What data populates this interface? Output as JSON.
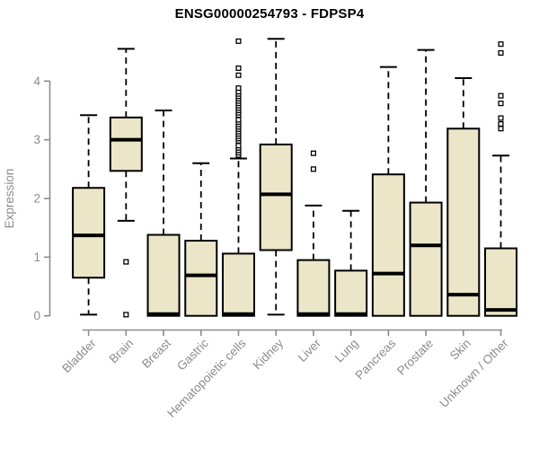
{
  "chart_data": {
    "type": "boxplot",
    "title": "ENSG00000254793 - FDPSP4",
    "xlabel": "",
    "ylabel": "Expression",
    "yticks": [
      0,
      1,
      2,
      3,
      4
    ],
    "ylim": [
      0,
      4.85
    ],
    "grid": false,
    "legend": "none",
    "categories": [
      "Bladder",
      "Brain",
      "Breast",
      "Gastric",
      "Hematopoietic cells",
      "Kidney",
      "Liver",
      "Lung",
      "Pancreas",
      "Prostate",
      "Skin",
      "Unknown / Other"
    ],
    "boxes": [
      {
        "category": "Bladder",
        "min": 0.02,
        "q1": 0.65,
        "median": 1.37,
        "q3": 2.18,
        "max": 3.42,
        "outliers": []
      },
      {
        "category": "Brain",
        "min": 1.62,
        "q1": 2.47,
        "median": 3.0,
        "q3": 3.38,
        "max": 4.55,
        "outliers": [
          0.92,
          0.02
        ]
      },
      {
        "category": "Breast",
        "min": 0.0,
        "q1": 0.0,
        "median": 0.03,
        "q3": 1.38,
        "max": 3.5,
        "outliers": []
      },
      {
        "category": "Gastric",
        "min": 0.0,
        "q1": 0.0,
        "median": 0.69,
        "q3": 1.28,
        "max": 2.6,
        "outliers": []
      },
      {
        "category": "Hematopoietic cells",
        "min": 0.0,
        "q1": 0.0,
        "median": 0.03,
        "q3": 1.06,
        "max": 2.68,
        "outliers": [
          2.74,
          2.78,
          2.82,
          2.86,
          2.9,
          2.98,
          3.02,
          3.06,
          3.1,
          3.14,
          3.18,
          3.22,
          3.26,
          3.3,
          3.34,
          3.42,
          3.46,
          3.5,
          3.54,
          3.58,
          3.62,
          3.66,
          3.7,
          3.74,
          3.78,
          3.82,
          3.88,
          4.1,
          4.22,
          4.68
        ]
      },
      {
        "category": "Kidney",
        "min": 0.02,
        "q1": 1.12,
        "median": 2.07,
        "q3": 2.92,
        "max": 4.72,
        "outliers": []
      },
      {
        "category": "Liver",
        "min": 0.0,
        "q1": 0.0,
        "median": 0.03,
        "q3": 0.95,
        "max": 1.88,
        "outliers": [
          2.5,
          2.77
        ]
      },
      {
        "category": "Lung",
        "min": 0.0,
        "q1": 0.0,
        "median": 0.03,
        "q3": 0.77,
        "max": 1.79,
        "outliers": []
      },
      {
        "category": "Pancreas",
        "min": 0.0,
        "q1": 0.0,
        "median": 0.72,
        "q3": 2.41,
        "max": 4.24,
        "outliers": []
      },
      {
        "category": "Prostate",
        "min": 0.0,
        "q1": 0.0,
        "median": 1.2,
        "q3": 1.93,
        "max": 4.53,
        "outliers": []
      },
      {
        "category": "Skin",
        "min": 0.0,
        "q1": 0.0,
        "median": 0.36,
        "q3": 3.19,
        "max": 4.05,
        "outliers": []
      },
      {
        "category": "Unknown / Other",
        "min": 0.0,
        "q1": 0.0,
        "median": 0.1,
        "q3": 1.15,
        "max": 2.73,
        "outliers": [
          3.19,
          3.27,
          3.37,
          3.62,
          3.75,
          4.48,
          4.63
        ]
      }
    ],
    "colors": {
      "background": "#ffffff",
      "box_fill": "#ece6c9",
      "box_border": "#000000",
      "median": "#000000",
      "whisker": "#000000",
      "outlier_fill": "#ffffff",
      "axis": "#8c8c8c",
      "tick_label": "#8c8c8c",
      "title": "#000000"
    }
  }
}
